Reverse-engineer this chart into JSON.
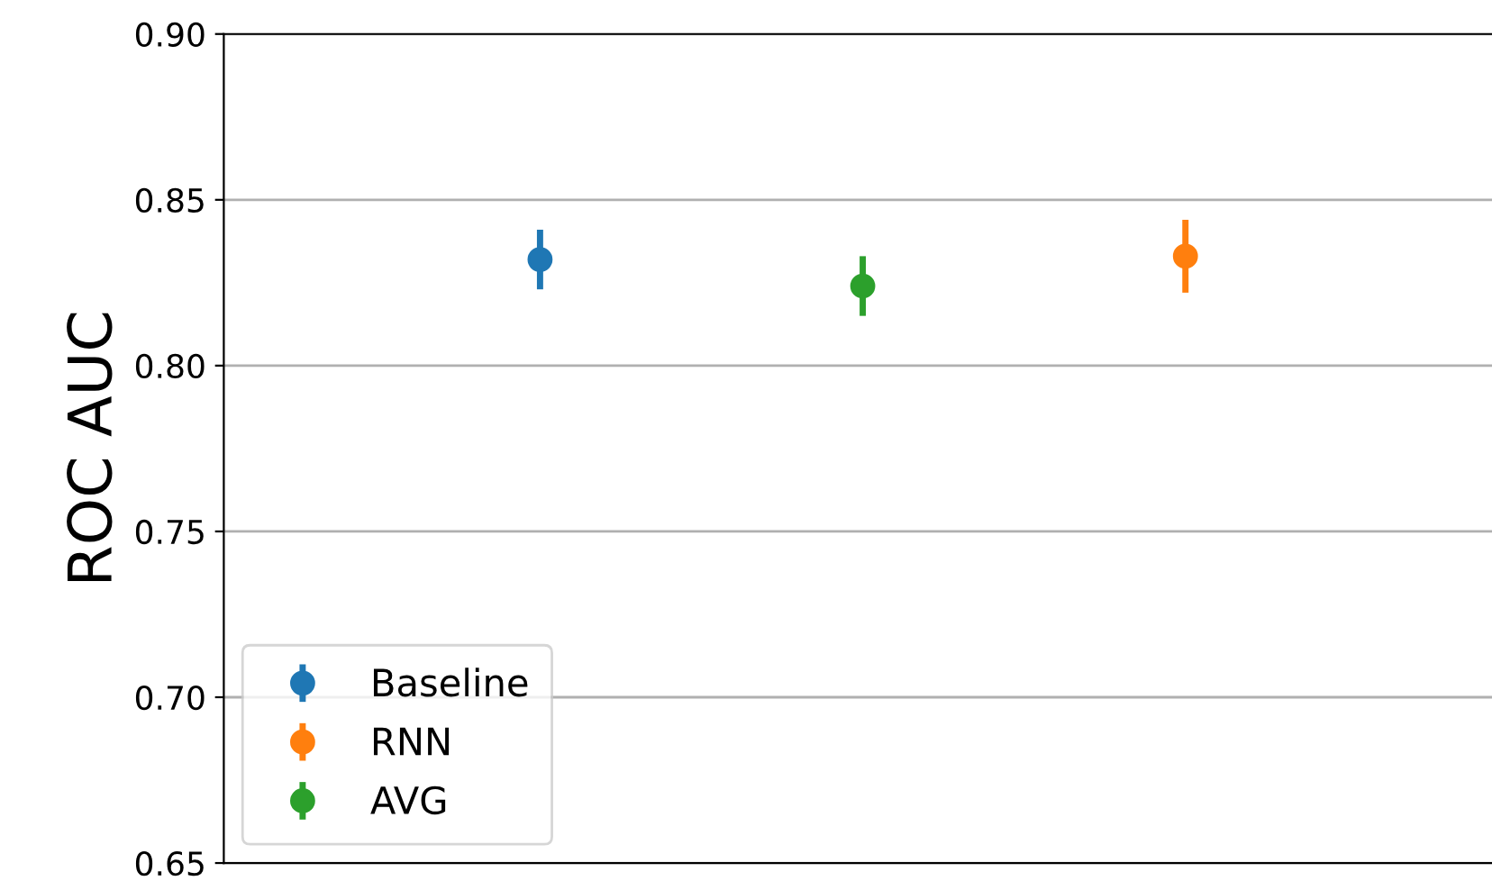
{
  "chart_data": {
    "type": "scatter",
    "ylabel": "ROC AUC",
    "categories": [
      null,
      null,
      null
    ],
    "series": [
      {
        "name": "Baseline",
        "color": "#1f77b4",
        "values": [
          0.832,
          null,
          null
        ],
        "errors": [
          0.009,
          null,
          null
        ]
      },
      {
        "name": "RNN",
        "color": "#ff7f0e",
        "values": [
          null,
          null,
          0.833
        ],
        "errors": [
          null,
          null,
          0.011
        ]
      },
      {
        "name": "AVG",
        "color": "#2ca02c",
        "values": [
          null,
          0.824,
          null
        ],
        "errors": [
          null,
          0.009,
          null
        ]
      }
    ],
    "ylim": [
      0.65,
      0.9
    ],
    "yticks": [
      {
        "value": 0.65,
        "label": "0.65"
      },
      {
        "value": 0.7,
        "label": "0.70"
      },
      {
        "value": 0.75,
        "label": "0.75"
      },
      {
        "value": 0.8,
        "label": "0.80"
      },
      {
        "value": 0.85,
        "label": "0.85"
      },
      {
        "value": 0.9,
        "label": "0.90"
      }
    ],
    "grid": "y",
    "legend": "bottom left",
    "marker": "circle",
    "tick_labels": "y"
  }
}
